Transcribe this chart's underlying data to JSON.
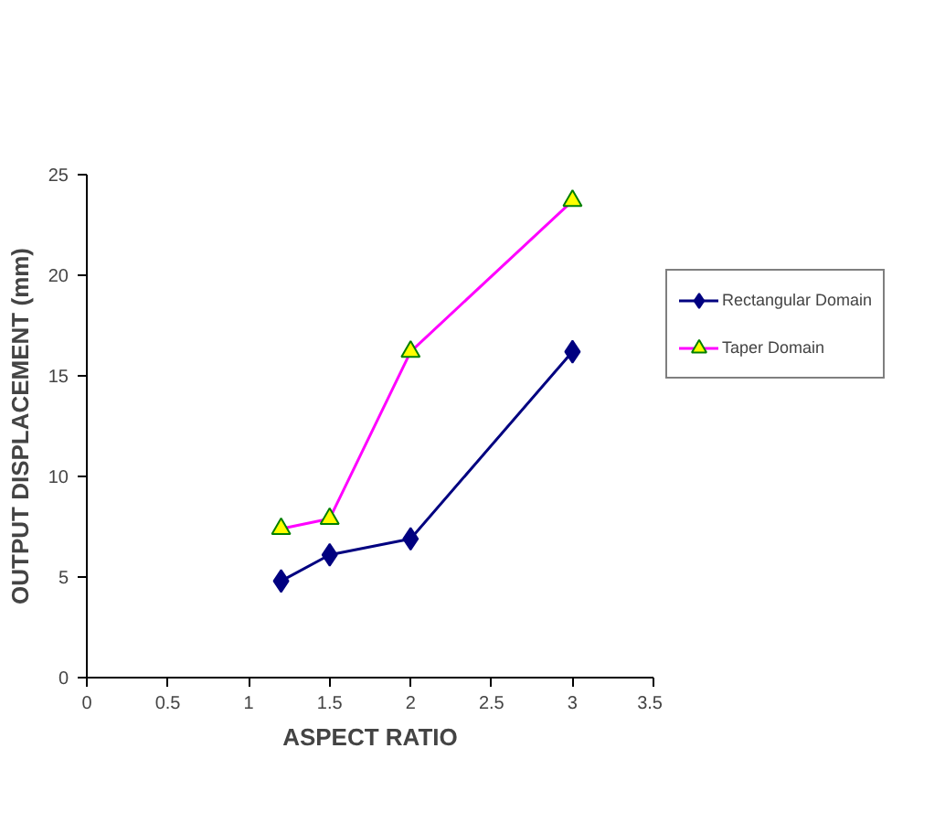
{
  "chart_data": {
    "type": "line",
    "xlabel": "ASPECT RATIO",
    "ylabel": "OUTPUT DISPLACEMENT (mm)",
    "x": [
      1.2,
      1.5,
      2,
      3
    ],
    "series": [
      {
        "name": "Rectangular Domain",
        "color": "#000080",
        "values": [
          4.8,
          6.1,
          6.9,
          16.2
        ],
        "marker": "diamond"
      },
      {
        "name": "Taper Domain",
        "color": "#ff00ff",
        "values": [
          7.4,
          7.9,
          16.2,
          23.7
        ],
        "marker": "triangle"
      }
    ],
    "xlim": [
      0,
      3.5
    ],
    "xticks": [
      0,
      0.5,
      1,
      1.5,
      2,
      2.5,
      3,
      3.5
    ],
    "ylim": [
      0,
      25
    ],
    "yticks": [
      0,
      5,
      10,
      15,
      20,
      25
    ],
    "grid": false,
    "legend": "right"
  }
}
